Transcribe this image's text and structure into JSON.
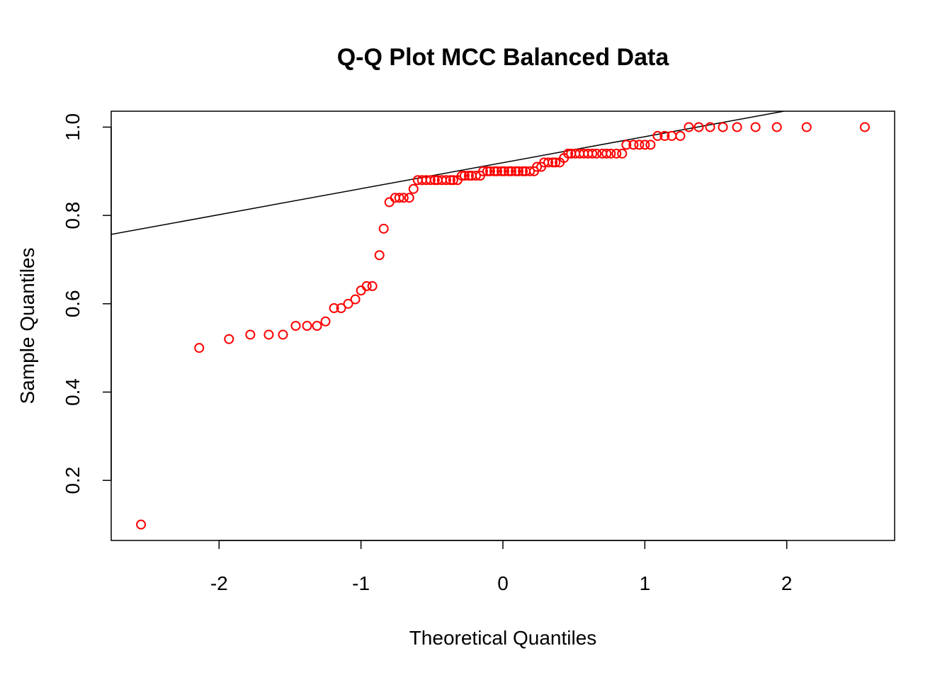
{
  "chart_data": {
    "type": "scatter",
    "title": "Q-Q Plot MCC Balanced Data",
    "xlabel": "Theoretical Quantiles",
    "ylabel": "Sample Quantiles",
    "xlim": [
      -2.76,
      2.76
    ],
    "ylim": [
      0.064,
      1.036
    ],
    "x_ticks": [
      -2,
      -1,
      0,
      1,
      2
    ],
    "x_tick_labels": [
      "-2",
      "-1",
      "0",
      "1",
      "2"
    ],
    "y_ticks": [
      0.2,
      0.4,
      0.6,
      0.8,
      1.0
    ],
    "y_tick_labels": [
      "0.2",
      "0.4",
      "0.6",
      "0.8",
      "1.0"
    ],
    "grid": false,
    "legend": false,
    "point_color": "#FF0000",
    "line_color": "#000000",
    "reference_line": {
      "x1": -2.76,
      "y1": 0.757,
      "x2": 1.98,
      "y2": 1.036
    },
    "series": [
      {
        "points": [
          [
            -2.55,
            0.1
          ],
          [
            -2.14,
            0.5
          ],
          [
            -1.93,
            0.52
          ],
          [
            -1.78,
            0.53
          ],
          [
            -1.65,
            0.53
          ],
          [
            -1.55,
            0.53
          ],
          [
            -1.46,
            0.55
          ],
          [
            -1.38,
            0.55
          ],
          [
            -1.31,
            0.55
          ],
          [
            -1.25,
            0.56
          ],
          [
            -1.19,
            0.59
          ],
          [
            -1.14,
            0.59
          ],
          [
            -1.09,
            0.6
          ],
          [
            -1.04,
            0.61
          ],
          [
            -1.0,
            0.63
          ],
          [
            -0.96,
            0.64
          ],
          [
            -0.92,
            0.64
          ],
          [
            -0.87,
            0.71
          ],
          [
            -0.84,
            0.77
          ],
          [
            -0.8,
            0.83
          ],
          [
            -0.76,
            0.84
          ],
          [
            -0.73,
            0.84
          ],
          [
            -0.7,
            0.84
          ],
          [
            -0.66,
            0.84
          ],
          [
            -0.63,
            0.86
          ],
          [
            -0.6,
            0.88
          ],
          [
            -0.57,
            0.88
          ],
          [
            -0.54,
            0.88
          ],
          [
            -0.51,
            0.88
          ],
          [
            -0.48,
            0.88
          ],
          [
            -0.46,
            0.88
          ],
          [
            -0.43,
            0.88
          ],
          [
            -0.4,
            0.88
          ],
          [
            -0.37,
            0.88
          ],
          [
            -0.35,
            0.88
          ],
          [
            -0.32,
            0.88
          ],
          [
            -0.29,
            0.89
          ],
          [
            -0.27,
            0.89
          ],
          [
            -0.24,
            0.89
          ],
          [
            -0.22,
            0.89
          ],
          [
            -0.19,
            0.89
          ],
          [
            -0.16,
            0.89
          ],
          [
            -0.14,
            0.9
          ],
          [
            -0.11,
            0.9
          ],
          [
            -0.09,
            0.9
          ],
          [
            -0.06,
            0.9
          ],
          [
            -0.04,
            0.9
          ],
          [
            -0.01,
            0.9
          ],
          [
            0.01,
            0.9
          ],
          [
            0.04,
            0.9
          ],
          [
            0.06,
            0.9
          ],
          [
            0.09,
            0.9
          ],
          [
            0.11,
            0.9
          ],
          [
            0.14,
            0.9
          ],
          [
            0.16,
            0.9
          ],
          [
            0.19,
            0.9
          ],
          [
            0.22,
            0.9
          ],
          [
            0.24,
            0.91
          ],
          [
            0.27,
            0.91
          ],
          [
            0.29,
            0.92
          ],
          [
            0.32,
            0.92
          ],
          [
            0.35,
            0.92
          ],
          [
            0.37,
            0.92
          ],
          [
            0.4,
            0.92
          ],
          [
            0.43,
            0.93
          ],
          [
            0.46,
            0.94
          ],
          [
            0.48,
            0.94
          ],
          [
            0.51,
            0.94
          ],
          [
            0.54,
            0.94
          ],
          [
            0.57,
            0.94
          ],
          [
            0.6,
            0.94
          ],
          [
            0.63,
            0.94
          ],
          [
            0.66,
            0.94
          ],
          [
            0.7,
            0.94
          ],
          [
            0.73,
            0.94
          ],
          [
            0.76,
            0.94
          ],
          [
            0.8,
            0.94
          ],
          [
            0.84,
            0.94
          ],
          [
            0.87,
            0.96
          ],
          [
            0.92,
            0.96
          ],
          [
            0.96,
            0.96
          ],
          [
            1.0,
            0.96
          ],
          [
            1.04,
            0.96
          ],
          [
            1.09,
            0.98
          ],
          [
            1.14,
            0.98
          ],
          [
            1.19,
            0.98
          ],
          [
            1.25,
            0.98
          ],
          [
            1.31,
            1.0
          ],
          [
            1.38,
            1.0
          ],
          [
            1.46,
            1.0
          ],
          [
            1.55,
            1.0
          ],
          [
            1.65,
            1.0
          ],
          [
            1.78,
            1.0
          ],
          [
            1.93,
            1.0
          ],
          [
            2.14,
            1.0
          ],
          [
            2.55,
            1.0
          ]
        ]
      }
    ]
  }
}
